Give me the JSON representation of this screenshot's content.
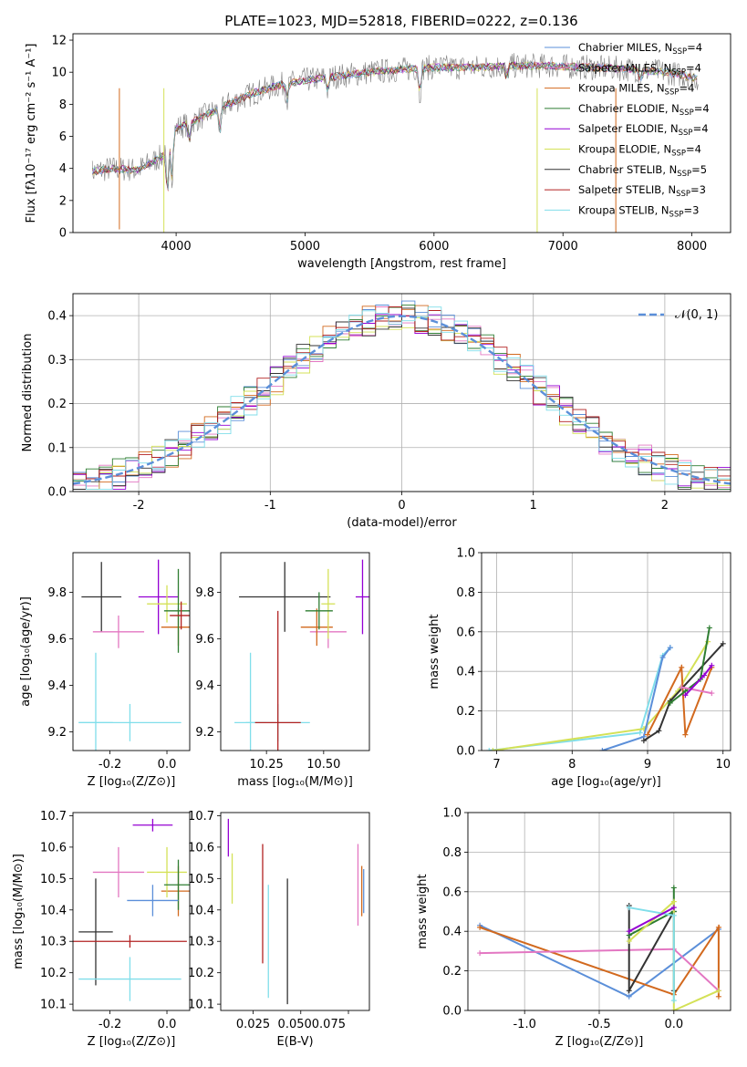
{
  "title": "PLATE=1023, MJD=52818, FIBERID=0222, z=0.136",
  "colors": {
    "chabrier_miles": "#1f4aff",
    "salpeter_miles": "#e377c2",
    "kroupa_miles": "#d2691e",
    "chabrier_elodie": "#2e7d32",
    "salpeter_elodie": "#9400d3",
    "kroupa_elodie": "#d4e157",
    "chabrier_stelib": "#333333",
    "salpeter_stelib": "#b22222",
    "kroupa_stelib": "#80deea",
    "gauss": "#5b8fd9",
    "data": "#808080"
  },
  "legend": [
    {
      "label": "Chabrier MILES, N",
      "sub": "SSP",
      "eq": "=4",
      "color": "#5b8fd9"
    },
    {
      "label": "Salpeter MILES, N",
      "sub": "SSP",
      "eq": "=4",
      "color": "#e377c2"
    },
    {
      "label": "Kroupa MILES, N",
      "sub": "SSP",
      "eq": "=4",
      "color": "#d2691e"
    },
    {
      "label": "Chabrier ELODIE, N",
      "sub": "SSP",
      "eq": "=4",
      "color": "#2e7d32"
    },
    {
      "label": "Salpeter ELODIE, N",
      "sub": "SSP",
      "eq": "=4",
      "color": "#9400d3"
    },
    {
      "label": "Kroupa ELODIE, N",
      "sub": "SSP",
      "eq": "=4",
      "color": "#d4e157"
    },
    {
      "label": "Chabrier STELIB, N",
      "sub": "SSP",
      "eq": "=5",
      "color": "#333333"
    },
    {
      "label": "Salpeter STELIB, N",
      "sub": "SSP",
      "eq": "=3",
      "color": "#b22222"
    },
    {
      "label": "Kroupa STELIB, N",
      "sub": "SSP",
      "eq": "=3",
      "color": "#80deea"
    }
  ],
  "chart_data": [
    {
      "type": "line",
      "panel": "spectrum",
      "xlabel": "wavelength [Angstrom, rest frame]",
      "ylabel": "Flux [fλ10⁻¹⁷ erg cm⁻² s⁻¹ A⁻¹]",
      "xlim": [
        3200,
        8300
      ],
      "ylim": [
        0,
        12.4
      ],
      "xticks": [
        4000,
        5000,
        6000,
        7000,
        8000
      ],
      "yticks": [
        0,
        2,
        4,
        6,
        8,
        10,
        12
      ],
      "envelope": {
        "x": [
          3350,
          3500,
          3700,
          3900,
          4000,
          4200,
          4400,
          4600,
          4800,
          5000,
          5200,
          5500,
          5800,
          6000,
          6300,
          6600,
          6900,
          7200,
          7500,
          7800,
          8000,
          8050
        ],
        "y": [
          3.8,
          4.0,
          3.9,
          4.8,
          6.5,
          7.2,
          8.0,
          8.7,
          9.2,
          9.5,
          9.7,
          10.0,
          10.2,
          10.3,
          10.3,
          10.4,
          10.4,
          10.3,
          10.2,
          10.0,
          9.7,
          9.6
        ]
      }
    },
    {
      "type": "bar",
      "panel": "residual histogram",
      "xlabel": "(data-model)/error",
      "ylabel": "Normed distribution",
      "xlim": [
        -2.5,
        2.5
      ],
      "ylim": [
        0,
        0.45
      ],
      "xticks": [
        -2,
        -1,
        0,
        1,
        2
      ],
      "yticks": [
        0.0,
        0.1,
        0.2,
        0.3,
        0.4
      ],
      "legend_label": "𝒩(0, 1)",
      "legend_loc": "upper right",
      "grid": true
    },
    {
      "type": "scatter",
      "panel": "age vs Z",
      "xlabel": "Z [log₁₀(Z/Z⊙)]",
      "ylabel": "age  [log₁₀(age/yr)]",
      "xlim": [
        -0.33,
        0.08
      ],
      "ylim": [
        9.12,
        9.97
      ],
      "xticks": [
        -0.2,
        0.0
      ],
      "yticks": [
        9.2,
        9.4,
        9.6,
        9.8
      ],
      "points": [
        {
          "x": -0.23,
          "y": 9.78,
          "xerr": 0.07,
          "yerr": 0.15,
          "c": "#333333"
        },
        {
          "x": -0.25,
          "y": 9.24,
          "xerr": 0.06,
          "yerr": 0.3,
          "c": "#80deea"
        },
        {
          "x": -0.13,
          "y": 9.24,
          "xerr": 0.18,
          "yerr": 0.08,
          "c": "#80deea"
        },
        {
          "x": -0.17,
          "y": 9.63,
          "xerr": 0.09,
          "yerr": 0.07,
          "c": "#e377c2"
        },
        {
          "x": -0.03,
          "y": 9.78,
          "xerr": 0.07,
          "yerr": 0.16,
          "c": "#9400d3"
        },
        {
          "x": 0.04,
          "y": 9.65,
          "xerr": 0.06,
          "yerr": 0.08,
          "c": "#d2691e"
        },
        {
          "x": 0.0,
          "y": 9.75,
          "xerr": 0.07,
          "yerr": 0.08,
          "c": "#d4e157"
        },
        {
          "x": 0.04,
          "y": 9.72,
          "xerr": 0.05,
          "yerr": 0.18,
          "c": "#2e7d32"
        },
        {
          "x": 0.05,
          "y": 9.7,
          "xerr": 0.04,
          "yerr": 0.06,
          "c": "#b22222"
        }
      ]
    },
    {
      "type": "scatter",
      "panel": "age vs mass",
      "xlabel": "mass [log₁₀(M/M⊙)]",
      "ylabel": "",
      "xlim": [
        10.05,
        10.7
      ],
      "ylim": [
        9.12,
        9.97
      ],
      "xticks": [
        10.25,
        10.5
      ],
      "yticks": [
        9.2,
        9.4,
        9.6,
        9.8
      ],
      "points": [
        {
          "x": 10.33,
          "y": 9.78,
          "xerr": 0.2,
          "yerr": 0.15,
          "c": "#333333"
        },
        {
          "x": 10.18,
          "y": 9.24,
          "xerr": 0.07,
          "yerr": 0.3,
          "c": "#80deea"
        },
        {
          "x": 10.3,
          "y": 9.24,
          "xerr": 0.14,
          "yerr": 0.08,
          "c": "#80deea"
        },
        {
          "x": 10.52,
          "y": 9.63,
          "xerr": 0.08,
          "yerr": 0.07,
          "c": "#e377c2"
        },
        {
          "x": 10.67,
          "y": 9.78,
          "xerr": 0.03,
          "yerr": 0.16,
          "c": "#9400d3"
        },
        {
          "x": 10.47,
          "y": 9.65,
          "xerr": 0.07,
          "yerr": 0.08,
          "c": "#d2691e"
        },
        {
          "x": 10.52,
          "y": 9.75,
          "xerr": 0.03,
          "yerr": 0.15,
          "c": "#d4e157"
        },
        {
          "x": 10.48,
          "y": 9.72,
          "xerr": 0.06,
          "yerr": 0.08,
          "c": "#2e7d32"
        },
        {
          "x": 10.3,
          "y": 9.24,
          "xerr": 0.1,
          "yerr": 0.48,
          "c": "#b22222"
        }
      ]
    },
    {
      "type": "line",
      "panel": "mass weight vs age",
      "xlabel": "age  [log₁₀(age/yr)]",
      "ylabel": "mass weight",
      "xlim": [
        6.8,
        10.1
      ],
      "ylim": [
        0,
        1.0
      ],
      "xticks": [
        7,
        8,
        9,
        10
      ],
      "yticks": [
        0.0,
        0.2,
        0.4,
        0.6,
        0.8,
        1.0
      ],
      "grid": true,
      "series": [
        {
          "c": "#80deea",
          "x": [
            6.9,
            8.9,
            9.2,
            9.3
          ],
          "y": [
            0.0,
            0.09,
            0.48,
            0.52
          ]
        },
        {
          "c": "#d4e157",
          "x": [
            6.95,
            8.95,
            9.4,
            9.8
          ],
          "y": [
            0.0,
            0.11,
            0.3,
            0.55
          ]
        },
        {
          "c": "#5b8fd9",
          "x": [
            8.4,
            8.95,
            9.2,
            9.3
          ],
          "y": [
            0.0,
            0.07,
            0.47,
            0.52
          ]
        },
        {
          "c": "#d2691e",
          "x": [
            9.0,
            9.45,
            9.5,
            9.85
          ],
          "y": [
            0.08,
            0.42,
            0.08,
            0.42
          ]
        },
        {
          "c": "#333333",
          "x": [
            8.95,
            9.15,
            9.3,
            10.0
          ],
          "y": [
            0.05,
            0.1,
            0.25,
            0.54
          ]
        },
        {
          "c": "#2e7d32",
          "x": [
            9.3,
            9.5,
            9.7,
            9.82
          ],
          "y": [
            0.24,
            0.3,
            0.36,
            0.62
          ]
        },
        {
          "c": "#e377c2",
          "x": [
            9.45,
            9.85
          ],
          "y": [
            0.32,
            0.29
          ]
        },
        {
          "c": "#9400d3",
          "x": [
            9.5,
            9.75,
            9.85
          ],
          "y": [
            0.28,
            0.38,
            0.43
          ]
        }
      ]
    },
    {
      "type": "scatter",
      "panel": "mass vs Z",
      "xlabel": "Z [log₁₀(Z/Z⊙)]",
      "ylabel": "mass [log₁₀(M/M⊙)]",
      "xlim": [
        -0.33,
        0.08
      ],
      "ylim": [
        10.08,
        10.71
      ],
      "xticks": [
        -0.2,
        0.0
      ],
      "yticks": [
        10.1,
        10.2,
        10.3,
        10.4,
        10.5,
        10.6,
        10.7
      ],
      "points": [
        {
          "x": -0.25,
          "y": 10.33,
          "xerr": 0.06,
          "yerr": 0.17,
          "c": "#333333"
        },
        {
          "x": -0.13,
          "y": 10.18,
          "xerr": 0.18,
          "yerr": 0.07,
          "c": "#80deea"
        },
        {
          "x": -0.13,
          "y": 10.3,
          "xerr": 0.2,
          "yerr": 0.02,
          "c": "#b22222"
        },
        {
          "x": -0.17,
          "y": 10.52,
          "xerr": 0.09,
          "yerr": 0.08,
          "c": "#e377c2"
        },
        {
          "x": -0.05,
          "y": 10.67,
          "xerr": 0.07,
          "yerr": 0.02,
          "c": "#9400d3"
        },
        {
          "x": 0.04,
          "y": 10.46,
          "xerr": 0.06,
          "yerr": 0.08,
          "c": "#d2691e"
        },
        {
          "x": 0.0,
          "y": 10.52,
          "xerr": 0.07,
          "yerr": 0.08,
          "c": "#d4e157"
        },
        {
          "x": 0.04,
          "y": 10.48,
          "xerr": 0.05,
          "yerr": 0.08,
          "c": "#2e7d32"
        },
        {
          "x": -0.05,
          "y": 10.43,
          "xerr": 0.09,
          "yerr": 0.05,
          "c": "#5b8fd9"
        }
      ]
    },
    {
      "type": "scatter",
      "panel": "mass vs E(B-V)",
      "xlabel": "E(B-V)",
      "ylabel": "",
      "xlim": [
        0.008,
        0.086
      ],
      "ylim": [
        10.08,
        10.71
      ],
      "xticks": [
        0.025,
        0.05,
        0.075
      ],
      "xticklabels": [
        "0.025",
        "0.0500.075"
      ],
      "yticks": [
        10.1,
        10.2,
        10.3,
        10.4,
        10.5,
        10.6,
        10.7
      ],
      "points": [
        {
          "x": 0.012,
          "y": 10.63,
          "yerr": 0.06,
          "c": "#9400d3"
        },
        {
          "x": 0.014,
          "y": 10.5,
          "yerr": 0.08,
          "c": "#d4e157"
        },
        {
          "x": 0.03,
          "y": 10.42,
          "yerr": 0.19,
          "c": "#b22222"
        },
        {
          "x": 0.033,
          "y": 10.3,
          "yerr": 0.18,
          "c": "#80deea"
        },
        {
          "x": 0.043,
          "y": 10.3,
          "yerr": 0.2,
          "c": "#333333"
        },
        {
          "x": 0.08,
          "y": 10.48,
          "yerr": 0.13,
          "c": "#e377c2"
        },
        {
          "x": 0.082,
          "y": 10.46,
          "yerr": 0.08,
          "c": "#d2691e"
        },
        {
          "x": 0.083,
          "y": 10.46,
          "yerr": 0.07,
          "c": "#5b8fd9"
        }
      ]
    },
    {
      "type": "line",
      "panel": "mass weight vs Z",
      "xlabel": "Z [log₁₀(Z/Z⊙)]",
      "ylabel": "mass weight",
      "xlim": [
        -1.38,
        0.38
      ],
      "ylim": [
        0,
        1.0
      ],
      "xticks": [
        -1.0,
        -0.5,
        0.0
      ],
      "yticks": [
        0.0,
        0.2,
        0.4,
        0.6,
        0.8,
        1.0
      ],
      "grid": true,
      "series": [
        {
          "c": "#5b8fd9",
          "x": [
            -1.3,
            -0.3,
            0.3
          ],
          "y": [
            0.43,
            0.07,
            0.41
          ]
        },
        {
          "c": "#d2691e",
          "x": [
            -1.3,
            0.0,
            0.3,
            0.3
          ],
          "y": [
            0.42,
            0.08,
            0.42,
            0.07
          ]
        },
        {
          "c": "#e377c2",
          "x": [
            -1.3,
            0.0,
            0.3
          ],
          "y": [
            0.29,
            0.31,
            0.1
          ]
        },
        {
          "c": "#333333",
          "x": [
            -0.3,
            -0.3,
            0.0,
            0.0
          ],
          "y": [
            0.53,
            0.1,
            0.5,
            0.1
          ]
        },
        {
          "c": "#2e7d32",
          "x": [
            -0.3,
            0.0,
            0.0
          ],
          "y": [
            0.38,
            0.5,
            0.62
          ]
        },
        {
          "c": "#d4e157",
          "x": [
            -0.3,
            0.0,
            0.0,
            0.3
          ],
          "y": [
            0.35,
            0.55,
            0.0,
            0.1
          ]
        },
        {
          "c": "#80deea",
          "x": [
            -0.3,
            0.0,
            0.0
          ],
          "y": [
            0.52,
            0.48,
            0.05
          ]
        },
        {
          "c": "#9400d3",
          "x": [
            -0.3,
            0.0
          ],
          "y": [
            0.4,
            0.52
          ]
        }
      ]
    }
  ]
}
